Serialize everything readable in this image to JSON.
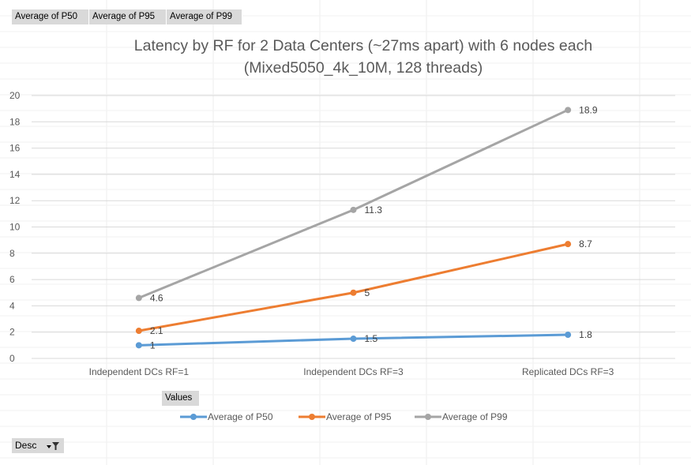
{
  "field_buttons": {
    "values": [
      "Average of P50",
      "Average of P95",
      "Average of P99"
    ],
    "axis_button": "Values",
    "filter_button": "Desc"
  },
  "colors": {
    "p50": "#5b9bd5",
    "p95": "#ed7d31",
    "p99": "#a5a5a5",
    "gridline": "#d9d9d9",
    "field_button_bg": "#d9d9d9"
  },
  "icons": {
    "filter": "filter-funnel-icon",
    "dropdown": "dropdown-arrow-icon"
  },
  "chart_data": {
    "type": "line",
    "title_line1": "Latency by RF for 2 Data Centers (~27ms apart) with 6 nodes each",
    "title_line2": "(Mixed5050_4k_10M, 128 threads)",
    "categories": [
      "Independent DCs RF=1",
      "Independent DCs RF=3",
      "Replicated DCs RF=3"
    ],
    "series": [
      {
        "name": "Average of P50",
        "values": [
          1,
          1.5,
          1.8
        ],
        "labels": [
          "1",
          "1.5",
          "1.8"
        ]
      },
      {
        "name": "Average of P95",
        "values": [
          2.1,
          5,
          8.7
        ],
        "labels": [
          "2.1",
          "5",
          "8.7"
        ]
      },
      {
        "name": "Average of P99",
        "values": [
          4.6,
          11.3,
          18.9
        ],
        "labels": [
          "4.6",
          "11.3",
          "18.9"
        ]
      }
    ],
    "ylim": [
      0,
      20
    ],
    "yticks": [
      "0",
      "2",
      "4",
      "6",
      "8",
      "10",
      "12",
      "14",
      "16",
      "18",
      "20"
    ],
    "grid": true,
    "legend_position": "bottom"
  }
}
